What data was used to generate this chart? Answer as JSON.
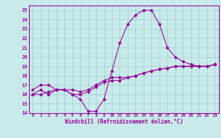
{
  "xlabel": "Windchill (Refroidissement éolien,°C)",
  "bg_color": "#c8eaea",
  "grid_color": "#a0c8c8",
  "line_color": "#990099",
  "hours": [
    0,
    1,
    2,
    3,
    4,
    5,
    6,
    7,
    8,
    9,
    10,
    11,
    12,
    13,
    14,
    15,
    16,
    17,
    18,
    19,
    20,
    21,
    22,
    23
  ],
  "line1": [
    16.0,
    16.5,
    16.0,
    16.5,
    16.5,
    16.0,
    15.5,
    14.2,
    14.2,
    15.5,
    18.5,
    21.5,
    23.5,
    24.5,
    25.0,
    25.0,
    23.5,
    21.0,
    20.0,
    19.5,
    19.2,
    19.0,
    19.0,
    19.2
  ],
  "line2": [
    16.0,
    16.0,
    16.3,
    16.5,
    16.5,
    16.5,
    16.3,
    16.5,
    17.0,
    17.5,
    17.8,
    17.8,
    17.8,
    18.0,
    18.3,
    18.5,
    18.7,
    18.8,
    19.0,
    19.0,
    19.0,
    19.0,
    19.0,
    19.2
  ],
  "line3": [
    16.5,
    17.0,
    17.0,
    16.5,
    16.5,
    16.0,
    16.0,
    16.3,
    16.8,
    17.3,
    17.5,
    17.5,
    17.8,
    18.0,
    18.3,
    18.5,
    18.7,
    18.8,
    19.0,
    19.0,
    19.0,
    19.0,
    19.0,
    19.2
  ],
  "ylim": [
    14,
    25.5
  ],
  "xlim": [
    -0.5,
    23.5
  ],
  "yticks": [
    14,
    15,
    16,
    17,
    18,
    19,
    20,
    21,
    22,
    23,
    24,
    25
  ],
  "xticks": [
    0,
    1,
    2,
    3,
    4,
    5,
    6,
    7,
    8,
    9,
    10,
    11,
    12,
    13,
    14,
    15,
    16,
    17,
    18,
    19,
    20,
    21,
    22,
    23
  ]
}
